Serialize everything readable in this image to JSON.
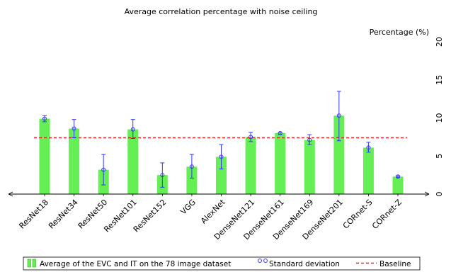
{
  "chart_data": {
    "type": "bar",
    "title": "Average correlation percentage with noise ceiling",
    "ylabel": "Percentage (%)",
    "xlabel": "",
    "ylim": [
      0,
      20
    ],
    "yticks": [
      0,
      5,
      10,
      15,
      20
    ],
    "categories": [
      "ResNet18",
      "ResNet34",
      "ResNet50",
      "ResNet101",
      "ResNet152",
      "VGG",
      "AlexNet",
      "DenseNet121",
      "DenseNet161",
      "DenseNet169",
      "DenseNet201",
      "CORnet-S",
      "CORnet-Z"
    ],
    "series": [
      {
        "name": "Average of the EVC and IT on the 78 image dataset",
        "values": [
          9.9,
          8.6,
          3.2,
          8.5,
          2.5,
          3.6,
          4.9,
          7.5,
          8.0,
          7.1,
          10.3,
          6.1,
          2.3
        ],
        "error_low": [
          9.5,
          7.4,
          1.2,
          7.3,
          0.9,
          2.1,
          3.3,
          6.9,
          7.8,
          6.5,
          7.0,
          5.5,
          2.2
        ],
        "error_high": [
          10.3,
          9.8,
          5.2,
          9.8,
          4.1,
          5.2,
          6.5,
          8.1,
          8.1,
          7.8,
          13.5,
          6.8,
          2.4
        ],
        "color": "#66ee55"
      }
    ],
    "error_label": "Standard deviation",
    "error_color": "#3333ff",
    "baseline": {
      "name": "Baseline",
      "value": 7.4,
      "color": "#ee2222"
    },
    "grid": false,
    "legend_position": "bottom"
  }
}
